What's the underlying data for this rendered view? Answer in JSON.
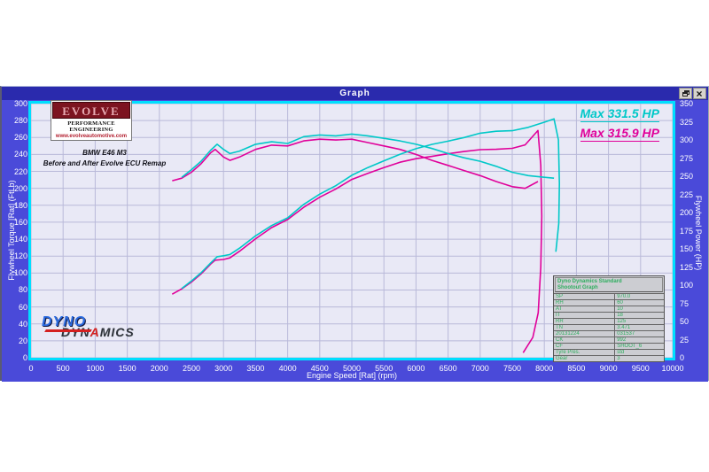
{
  "window": {
    "title": "Graph",
    "buttons": {
      "restore": "restore",
      "close": "×"
    }
  },
  "branding": {
    "evolve": {
      "wordmark": "EVOLVE",
      "line2": "PERFORMANCE ENGINEERING",
      "line3": "www.evolveautomotive.com"
    },
    "vehicle_line1": "BMW E46 M3",
    "vehicle_line2": "Before and After Evolve ECU Remap",
    "dyno": {
      "line1": "DYNO",
      "line2_a": "DYN",
      "line2_b": "A",
      "line2_c": "MICS"
    }
  },
  "annotations": {
    "max_after": "Max 331.5 HP",
    "max_before": "Max 315.9 HP"
  },
  "info_table": {
    "header_line1": "Dyno Dynamics Standard",
    "header_line2": "Shootout Graph",
    "rows": [
      [
        "SP",
        "970.0"
      ],
      [
        "RH",
        "60"
      ],
      [
        "AT",
        "10"
      ],
      [
        "IT",
        "18"
      ],
      [
        "RR",
        "125"
      ],
      [
        "TN",
        "3.471"
      ],
      [
        "20131224",
        "031537"
      ],
      [
        "CK",
        "992"
      ],
      [
        "CF",
        "SHOOT_6"
      ],
      [
        "Tyre Pres.",
        "std"
      ],
      [
        "Gear",
        "3"
      ]
    ]
  },
  "chart_data": {
    "type": "line",
    "xlabel": "Engine Speed [Rat] (rpm)",
    "ylabel_left": "Flywheel Torque [Rat] (FtLb)",
    "ylabel_right": "Flywheel Power (HP)",
    "xlim": [
      0,
      10000
    ],
    "x_tick_step": 500,
    "ylim_left": [
      0,
      300
    ],
    "y_left_tick_step": 20,
    "ylim_right": [
      0,
      350
    ],
    "y_right_tick_step": 25,
    "grid": true,
    "legend_position": "none",
    "power_formula": "power_hp = torque_ftlb * rpm / 5252",
    "series": [
      {
        "name": "after_evolve_remap",
        "max_hp": 331.5,
        "color_key": "after",
        "rpm": [
          2350,
          2500,
          2650,
          2800,
          2900,
          3000,
          3100,
          3250,
          3500,
          3750,
          4000,
          4250,
          4500,
          4750,
          5000,
          5250,
          5500,
          5750,
          6000,
          6250,
          6500,
          6750,
          7000,
          7250,
          7500,
          7750,
          8000,
          8150
        ],
        "torque_ftlb": [
          213,
          222,
          232,
          245,
          252,
          246,
          241,
          244,
          252,
          255,
          253,
          261,
          263,
          262,
          264,
          262,
          259,
          256,
          252,
          247,
          241,
          236,
          232,
          226,
          219,
          215,
          213,
          212
        ],
        "power_tail_rpm_hp": [
          [
            8220,
            300
          ],
          [
            8235,
            240
          ],
          [
            8225,
            185
          ],
          [
            8180,
            146
          ]
        ]
      },
      {
        "name": "before_stock",
        "max_hp": 315.9,
        "color_key": "before",
        "rpm": [
          2200,
          2350,
          2500,
          2650,
          2800,
          2870,
          3000,
          3100,
          3250,
          3500,
          3750,
          4000,
          4250,
          4500,
          4750,
          5000,
          5250,
          5500,
          5750,
          6000,
          6250,
          6500,
          6750,
          7000,
          7250,
          7500,
          7700,
          7900
        ],
        "torque_ftlb": [
          209,
          212,
          219,
          229,
          242,
          246,
          237,
          233,
          237,
          246,
          251,
          250,
          256,
          258,
          257,
          258,
          254,
          250,
          246,
          240,
          233,
          227,
          221,
          215,
          208,
          202,
          200,
          208
        ],
        "power_tail_rpm_hp": [
          [
            7945,
            265
          ],
          [
            7960,
            195
          ],
          [
            7945,
            125
          ],
          [
            7905,
            62
          ],
          [
            7820,
            28
          ],
          [
            7670,
            7
          ]
        ]
      }
    ]
  },
  "colors": {
    "titlebar": "#2a2aad",
    "panel": "#4a4ad9",
    "plot_bg": "#e9e9f6",
    "grid": "#b9b9d9",
    "plot_border": "#00dfff",
    "after": "#00c8c8",
    "before": "#e0009a",
    "table_text": "#2fae5f"
  }
}
